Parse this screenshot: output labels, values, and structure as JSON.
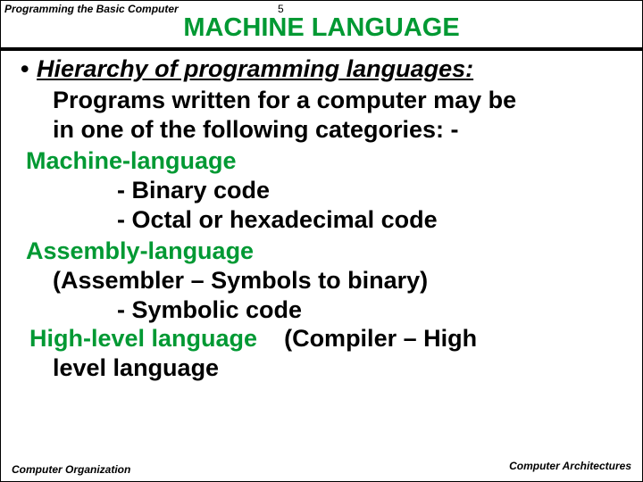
{
  "header": {
    "left": "Programming the Basic Computer",
    "page": "5"
  },
  "title": "MACHINE  LANGUAGE",
  "colors": {
    "title": "#009933",
    "level_title": "#009933",
    "body": "#000000"
  },
  "hierarchy_label": "Hierarchy of programming languages:",
  "intro_line1": "Programs written for a computer may be",
  "intro_line2": "in one of the following categories: -",
  "levels": {
    "machine": {
      "title": "Machine-language",
      "item1": "- Binary code",
      "item2": "- Octal or hexadecimal code"
    },
    "assembly": {
      "title": "Assembly-language",
      "paren": "(Assembler – Symbols to binary)",
      "item1": "- Symbolic code"
    },
    "highlevel": {
      "title": "High-level language",
      "paren": "(Compiler – High",
      "cont": "level language"
    }
  },
  "footer": {
    "left": "Computer Organization",
    "right": "Computer Architectures"
  }
}
